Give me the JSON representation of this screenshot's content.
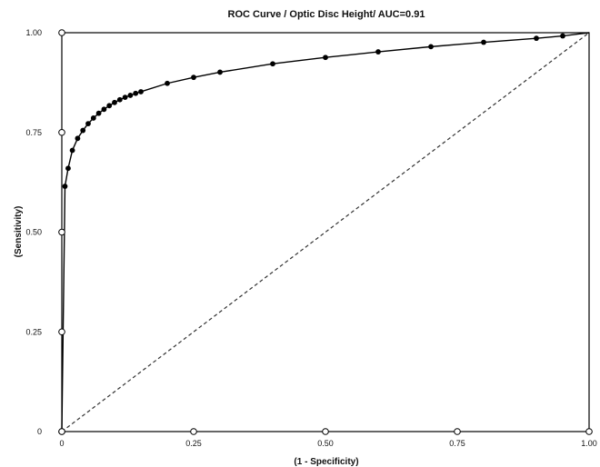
{
  "chart_data": {
    "type": "line",
    "title": "ROC Curve / Optic Disc Height/ AUC=0.91",
    "xlabel": "(1 - Specificity)",
    "ylabel": "(Sensitivity)",
    "xlim": [
      0,
      1
    ],
    "ylim": [
      0,
      1
    ],
    "x_ticks": [
      {
        "value": 0,
        "label": "0"
      },
      {
        "value": 0.25,
        "label": "0.25"
      },
      {
        "value": 0.5,
        "label": "0.50"
      },
      {
        "value": 0.75,
        "label": "0.75"
      },
      {
        "value": 1,
        "label": "1.00"
      }
    ],
    "y_ticks": [
      {
        "value": 0,
        "label": "0"
      },
      {
        "value": 0.25,
        "label": "0.25"
      },
      {
        "value": 0.5,
        "label": "0.50"
      },
      {
        "value": 0.75,
        "label": "0.75"
      },
      {
        "value": 1,
        "label": "1.00"
      }
    ],
    "grid": false,
    "legend": "none",
    "series": [
      {
        "style": "line-markers",
        "color": "#000000",
        "points": [
          {
            "x": 0,
            "y": 0
          },
          {
            "x": 0.006,
            "y": 0.615
          },
          {
            "x": 0.012,
            "y": 0.66
          },
          {
            "x": 0.02,
            "y": 0.705
          },
          {
            "x": 0.03,
            "y": 0.735
          },
          {
            "x": 0.04,
            "y": 0.755
          },
          {
            "x": 0.05,
            "y": 0.772
          },
          {
            "x": 0.06,
            "y": 0.786
          },
          {
            "x": 0.07,
            "y": 0.798
          },
          {
            "x": 0.08,
            "y": 0.808
          },
          {
            "x": 0.09,
            "y": 0.817
          },
          {
            "x": 0.1,
            "y": 0.825
          },
          {
            "x": 0.11,
            "y": 0.832
          },
          {
            "x": 0.12,
            "y": 0.838
          },
          {
            "x": 0.13,
            "y": 0.843
          },
          {
            "x": 0.14,
            "y": 0.848
          },
          {
            "x": 0.15,
            "y": 0.852
          },
          {
            "x": 0.2,
            "y": 0.873
          },
          {
            "x": 0.25,
            "y": 0.888
          },
          {
            "x": 0.3,
            "y": 0.901
          },
          {
            "x": 0.4,
            "y": 0.922
          },
          {
            "x": 0.5,
            "y": 0.938
          },
          {
            "x": 0.6,
            "y": 0.952
          },
          {
            "x": 0.7,
            "y": 0.965
          },
          {
            "x": 0.8,
            "y": 0.976
          },
          {
            "x": 0.9,
            "y": 0.986
          },
          {
            "x": 0.95,
            "y": 0.992
          },
          {
            "x": 1,
            "y": 1
          }
        ]
      },
      {
        "style": "dashed",
        "color": "#333333",
        "points": [
          {
            "x": 0,
            "y": 0
          },
          {
            "x": 1,
            "y": 1
          }
        ]
      }
    ]
  }
}
